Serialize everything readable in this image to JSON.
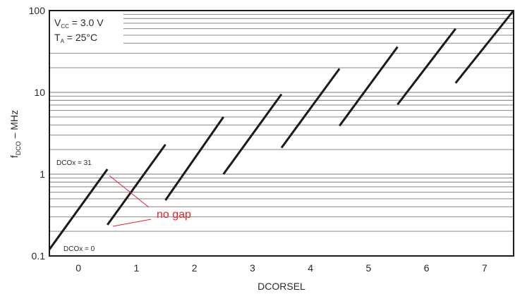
{
  "chart_data": {
    "type": "line",
    "y_scale": "log",
    "xlabel_main": "DCORSEL",
    "ylabel": {
      "base": "f",
      "sub": "DCO",
      "rest": " – MHz"
    },
    "conditions": [
      {
        "base": "V",
        "sub": "CC",
        "rest": " = 3.0 V"
      },
      {
        "base": "T",
        "sub": "A",
        "rest": " = 25°C"
      }
    ],
    "x_ticks": [
      "0",
      "1",
      "2",
      "3",
      "4",
      "5",
      "6",
      "7"
    ],
    "y_ticks": [
      {
        "value": 0.1,
        "label": "0.1"
      },
      {
        "value": 1,
        "label": "1"
      },
      {
        "value": 10,
        "label": "10"
      },
      {
        "value": 100,
        "label": "100"
      }
    ],
    "xlim": [
      -0.5,
      7.5
    ],
    "ylim": [
      0.1,
      100
    ],
    "grid": {
      "horizontal_minor": true,
      "vertical": false
    },
    "series": [
      {
        "x": [
          -0.5,
          0.5
        ],
        "y": [
          0.12,
          1.15
        ]
      },
      {
        "x": [
          0.5,
          1.5
        ],
        "y": [
          0.24,
          2.3
        ]
      },
      {
        "x": [
          1.5,
          2.5
        ],
        "y": [
          0.48,
          5.0
        ]
      },
      {
        "x": [
          2.5,
          3.5
        ],
        "y": [
          1.0,
          9.5
        ]
      },
      {
        "x": [
          3.5,
          4.5
        ],
        "y": [
          2.1,
          19.5
        ]
      },
      {
        "x": [
          4.5,
          5.5
        ],
        "y": [
          3.9,
          36
        ]
      },
      {
        "x": [
          5.5,
          6.5
        ],
        "y": [
          7.1,
          60
        ]
      },
      {
        "x": [
          6.5,
          7.5
        ],
        "y": [
          13,
          100
        ]
      }
    ],
    "dco_labels": [
      "DCOx = 31",
      "DCOx = 0"
    ],
    "annotation": "no gap",
    "colors": {
      "line": "#1a1a1a",
      "grid": "#777777",
      "annotation": "#e0242c",
      "text": "#2a2a2a"
    }
  }
}
